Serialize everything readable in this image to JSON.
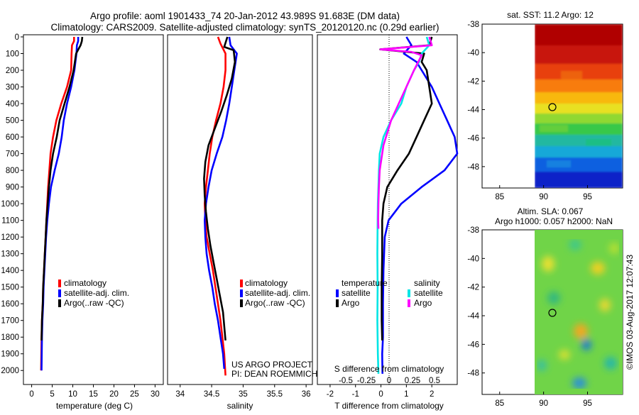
{
  "title_line1": "Argo profile: aoml 1901433_74 20-Jan-2012 43.989S 91.683E (DM data)",
  "title_line2": "Climatology: CARS2009. Satellite-adjusted climatology: synTS_20120120.nc (0.29d earlier)",
  "project_line1": "US ARGO PROJECT",
  "project_line2": "PI: DEAN ROEMMICH",
  "vertical_stamp": "©IMOS 03-Aug-2017 12:07:43",
  "colors": {
    "climatology": "#ff0000",
    "satellite": "#0000ff",
    "argo": "#000000",
    "sal_satellite": "#00e5e5",
    "sal_argo": "#ff00ff"
  },
  "chart_data": [
    {
      "type": "line",
      "xlabel": "temperature (deg C)",
      "xticks": [
        "0",
        "5",
        "10",
        "15",
        "20",
        "25",
        "30"
      ],
      "xlim": [
        -2,
        32
      ],
      "yticks": [
        "0",
        "100",
        "200",
        "300",
        "400",
        "500",
        "600",
        "700",
        "800",
        "900",
        "1000",
        "1100",
        "1200",
        "1300",
        "1400",
        "1500",
        "1600",
        "1700",
        "1800",
        "1900",
        "2000"
      ],
      "ylim": [
        0,
        2050
      ],
      "legend": [
        "climatology",
        "satellite-adj. clim.",
        "Argo(..raw -QC)"
      ],
      "series": [
        {
          "name": "climatology",
          "x": [
            10.3,
            10.3,
            9.8,
            9.7,
            9.6,
            8.6,
            7.2,
            6.0,
            5.2,
            4.6,
            4.3,
            4.0,
            3.8,
            3.6,
            3.4,
            3.2,
            3.0,
            2.8,
            2.7,
            2.5,
            2.4,
            2.3
          ],
          "y": [
            0,
            25,
            50,
            100,
            200,
            300,
            400,
            500,
            600,
            700,
            800,
            900,
            1000,
            1100,
            1200,
            1300,
            1400,
            1500,
            1600,
            1700,
            1800,
            2000
          ]
        },
        {
          "name": "satellite-adj. clim.",
          "x": [
            11.3,
            11.3,
            11.0,
            10.9,
            10.4,
            9.6,
            8.6,
            7.8,
            7.3,
            6.6,
            5.6,
            4.7,
            4.2,
            3.8,
            3.5,
            3.3,
            3.1,
            2.9,
            2.8,
            2.6,
            2.5,
            2.4
          ],
          "y": [
            0,
            25,
            50,
            100,
            200,
            300,
            400,
            500,
            600,
            700,
            800,
            900,
            1000,
            1100,
            1200,
            1300,
            1400,
            1500,
            1600,
            1700,
            1800,
            2000
          ]
        },
        {
          "name": "Argo(..raw -QC)",
          "x": [
            12.3,
            12.2,
            11.9,
            10.8,
            10.2,
            9.2,
            8.0,
            6.8,
            6.1,
            5.2,
            4.6,
            4.2,
            3.9,
            3.6,
            3.4,
            3.2,
            3.0,
            2.8,
            2.7,
            2.5,
            2.4
          ],
          "y": [
            0,
            25,
            50,
            100,
            200,
            300,
            400,
            500,
            600,
            700,
            800,
            900,
            1000,
            1100,
            1200,
            1300,
            1400,
            1500,
            1600,
            1700,
            1820
          ]
        }
      ]
    },
    {
      "type": "line",
      "xlabel": "salinity",
      "xticks": [
        "34",
        "34.5",
        "35",
        "35.5",
        "36"
      ],
      "xlim": [
        33.8,
        36.1
      ],
      "ylim": [
        0,
        2050
      ],
      "legend": [
        "climatology",
        "satellite-adj. clim.",
        "Argo(..raw -QC)"
      ],
      "series": [
        {
          "name": "climatology",
          "x": [
            34.6,
            34.64,
            34.72,
            34.72,
            34.69,
            34.64,
            34.57,
            34.51,
            34.47,
            34.44,
            34.41,
            34.39,
            34.4,
            34.42,
            34.47,
            34.52,
            34.56,
            34.6,
            34.64,
            34.67,
            34.7,
            34.72
          ],
          "y": [
            0,
            40,
            100,
            200,
            300,
            400,
            500,
            600,
            700,
            800,
            900,
            1000,
            1100,
            1200,
            1300,
            1400,
            1500,
            1600,
            1700,
            1800,
            1900,
            2030
          ]
        },
        {
          "name": "satellite-adj. clim.",
          "x": [
            34.78,
            34.8,
            34.9,
            34.86,
            34.82,
            34.78,
            34.73,
            34.67,
            34.58,
            34.5,
            34.45,
            34.41,
            34.39,
            34.4,
            34.42,
            34.46,
            34.51,
            34.55,
            34.6,
            34.64,
            34.68,
            34.7
          ],
          "y": [
            0,
            50,
            100,
            200,
            300,
            400,
            500,
            600,
            700,
            800,
            900,
            1000,
            1100,
            1200,
            1300,
            1400,
            1500,
            1600,
            1700,
            1800,
            1900,
            1990
          ]
        },
        {
          "name": "Argo(..raw -QC)",
          "x": [
            34.75,
            34.7,
            34.85,
            34.87,
            34.82,
            34.74,
            34.65,
            34.55,
            34.45,
            34.4,
            34.38,
            34.39,
            34.41,
            34.44,
            34.48,
            34.53,
            34.58,
            34.63,
            34.68,
            34.72
          ],
          "y": [
            0,
            60,
            80,
            150,
            250,
            350,
            450,
            550,
            650,
            750,
            850,
            950,
            1050,
            1150,
            1250,
            1350,
            1450,
            1550,
            1650,
            1820
          ]
        }
      ]
    },
    {
      "type": "line",
      "xlabel": "T difference from climatology",
      "xticks": [
        "-2",
        "-1",
        "0",
        "1",
        "2"
      ],
      "xlim": [
        -2.5,
        3.0
      ],
      "sal_label": "S difference from climatology",
      "sal_ticks": [
        "-0.5",
        "-0.25",
        "0",
        "0.25",
        "0.5"
      ],
      "ylim": [
        0,
        2050
      ],
      "legend_headers": [
        "temperature",
        "salinity"
      ],
      "legend": [
        "satellite",
        "Argo",
        "satellite",
        "Argo"
      ],
      "series": [
        {
          "name": "satellite",
          "x": [
            1.0,
            1.2,
            0.9,
            1.4,
            1.6,
            2.0,
            2.3,
            2.6,
            2.9,
            3.0,
            2.5,
            1.6,
            0.8,
            0.3,
            0.15,
            0.1,
            0.08,
            0.08,
            0.05,
            0.06
          ],
          "y": [
            0,
            50,
            100,
            150,
            200,
            300,
            400,
            500,
            600,
            700,
            800,
            900,
            1000,
            1100,
            1200,
            1400,
            1600,
            1800,
            1900,
            2020
          ]
        },
        {
          "name": "Argo",
          "x": [
            2.0,
            1.9,
            -0.03,
            1.7,
            1.6,
            1.8,
            1.9,
            2.0,
            1.7,
            1.4,
            1.1,
            0.65,
            0.25,
            0.1,
            0.05,
            0.05,
            0.03,
            0.03,
            0.05
          ],
          "y": [
            0,
            50,
            75,
            100,
            150,
            200,
            300,
            400,
            500,
            600,
            700,
            800,
            900,
            1000,
            1100,
            1300,
            1500,
            1700,
            1820
          ]
        },
        {
          "name": "satellite",
          "x": [
            1.8,
            1.9,
            1.6,
            1.5,
            1.3,
            1.0,
            0.8,
            0.4,
            0.1,
            -0.05,
            -0.08,
            -0.1,
            -0.12,
            -0.13,
            -0.14,
            -0.13,
            -0.14,
            -0.12,
            -0.1
          ],
          "y": [
            0,
            50,
            100,
            150,
            200,
            300,
            400,
            500,
            600,
            700,
            800,
            900,
            1000,
            1100,
            1300,
            1500,
            1700,
            1900,
            2020
          ]
        },
        {
          "name": "Argo",
          "x": [
            1.9,
            2.0,
            -0.02,
            1.2,
            1.6,
            1.3,
            1.0,
            0.7,
            0.4,
            0.1,
            -0.05,
            -0.08,
            -0.1,
            -0.11,
            -0.1
          ],
          "y": [
            0,
            50,
            75,
            90,
            110,
            200,
            300,
            400,
            500,
            650,
            800,
            900,
            1000,
            1100,
            1150
          ]
        }
      ]
    },
    {
      "type": "heatmap",
      "title": "sat. SST: 11.2 Argo: 12",
      "xticks": [
        "85",
        "90",
        "95"
      ],
      "yticks": [
        "-38",
        "-40",
        "-42",
        "-44",
        "-46",
        "-48"
      ],
      "xlim": [
        83,
        99
      ],
      "ylim": [
        -49.5,
        -38
      ],
      "marker": {
        "lon": 91.683,
        "lat": -43.989
      }
    },
    {
      "type": "heatmap",
      "title": "Altim. SLA: 0.067",
      "subtitle": "Argo h1000: 0.057 h2000: NaN",
      "xticks": [
        "85",
        "90",
        "95"
      ],
      "yticks": [
        "-38",
        "-40",
        "-42",
        "-44",
        "-46",
        "-48"
      ],
      "xlim": [
        83,
        99
      ],
      "ylim": [
        -49.5,
        -38
      ],
      "marker": {
        "lon": 91.683,
        "lat": -43.989
      }
    }
  ]
}
